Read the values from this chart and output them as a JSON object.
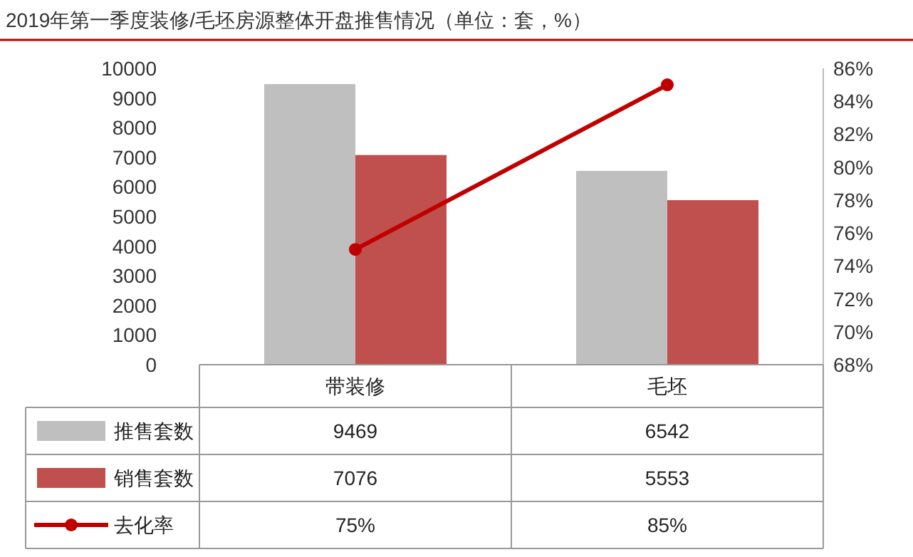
{
  "chart_data": {
    "type": "bar",
    "title": "2019年第一季度装修/毛坯房源整体开盘推售情况（单位：套，%）",
    "categories": [
      "带装修",
      "毛坯"
    ],
    "series": [
      {
        "name": "推售套数",
        "color": "#bfbfbf",
        "values": [
          9469,
          6542
        ],
        "value_labels": [
          "9469",
          "6542"
        ]
      },
      {
        "name": "销售套数",
        "color": "#c0504d",
        "values": [
          7076,
          5553
        ],
        "value_labels": [
          "7076",
          "5553"
        ]
      },
      {
        "name": "去化率",
        "type": "line",
        "axis": "y2",
        "color": "#c00000",
        "values": [
          75,
          85
        ],
        "value_labels": [
          "75%",
          "85%"
        ]
      }
    ],
    "ylim": [
      0,
      10000
    ],
    "yticks": [
      0,
      1000,
      2000,
      3000,
      4000,
      5000,
      6000,
      7000,
      8000,
      9000,
      10000
    ],
    "y2lim": [
      68,
      86
    ],
    "y2ticks": [
      {
        "value": 68,
        "label": "68%"
      },
      {
        "value": 70,
        "label": "70%"
      },
      {
        "value": 72,
        "label": "72%"
      },
      {
        "value": 74,
        "label": "74%"
      },
      {
        "value": 76,
        "label": "76%"
      },
      {
        "value": 78,
        "label": "78%"
      },
      {
        "value": 80,
        "label": "80%"
      },
      {
        "value": 82,
        "label": "82%"
      },
      {
        "value": 84,
        "label": "84%"
      },
      {
        "value": 86,
        "label": "86%"
      }
    ],
    "marker": "circle",
    "legend": "bottom",
    "grid": false
  }
}
